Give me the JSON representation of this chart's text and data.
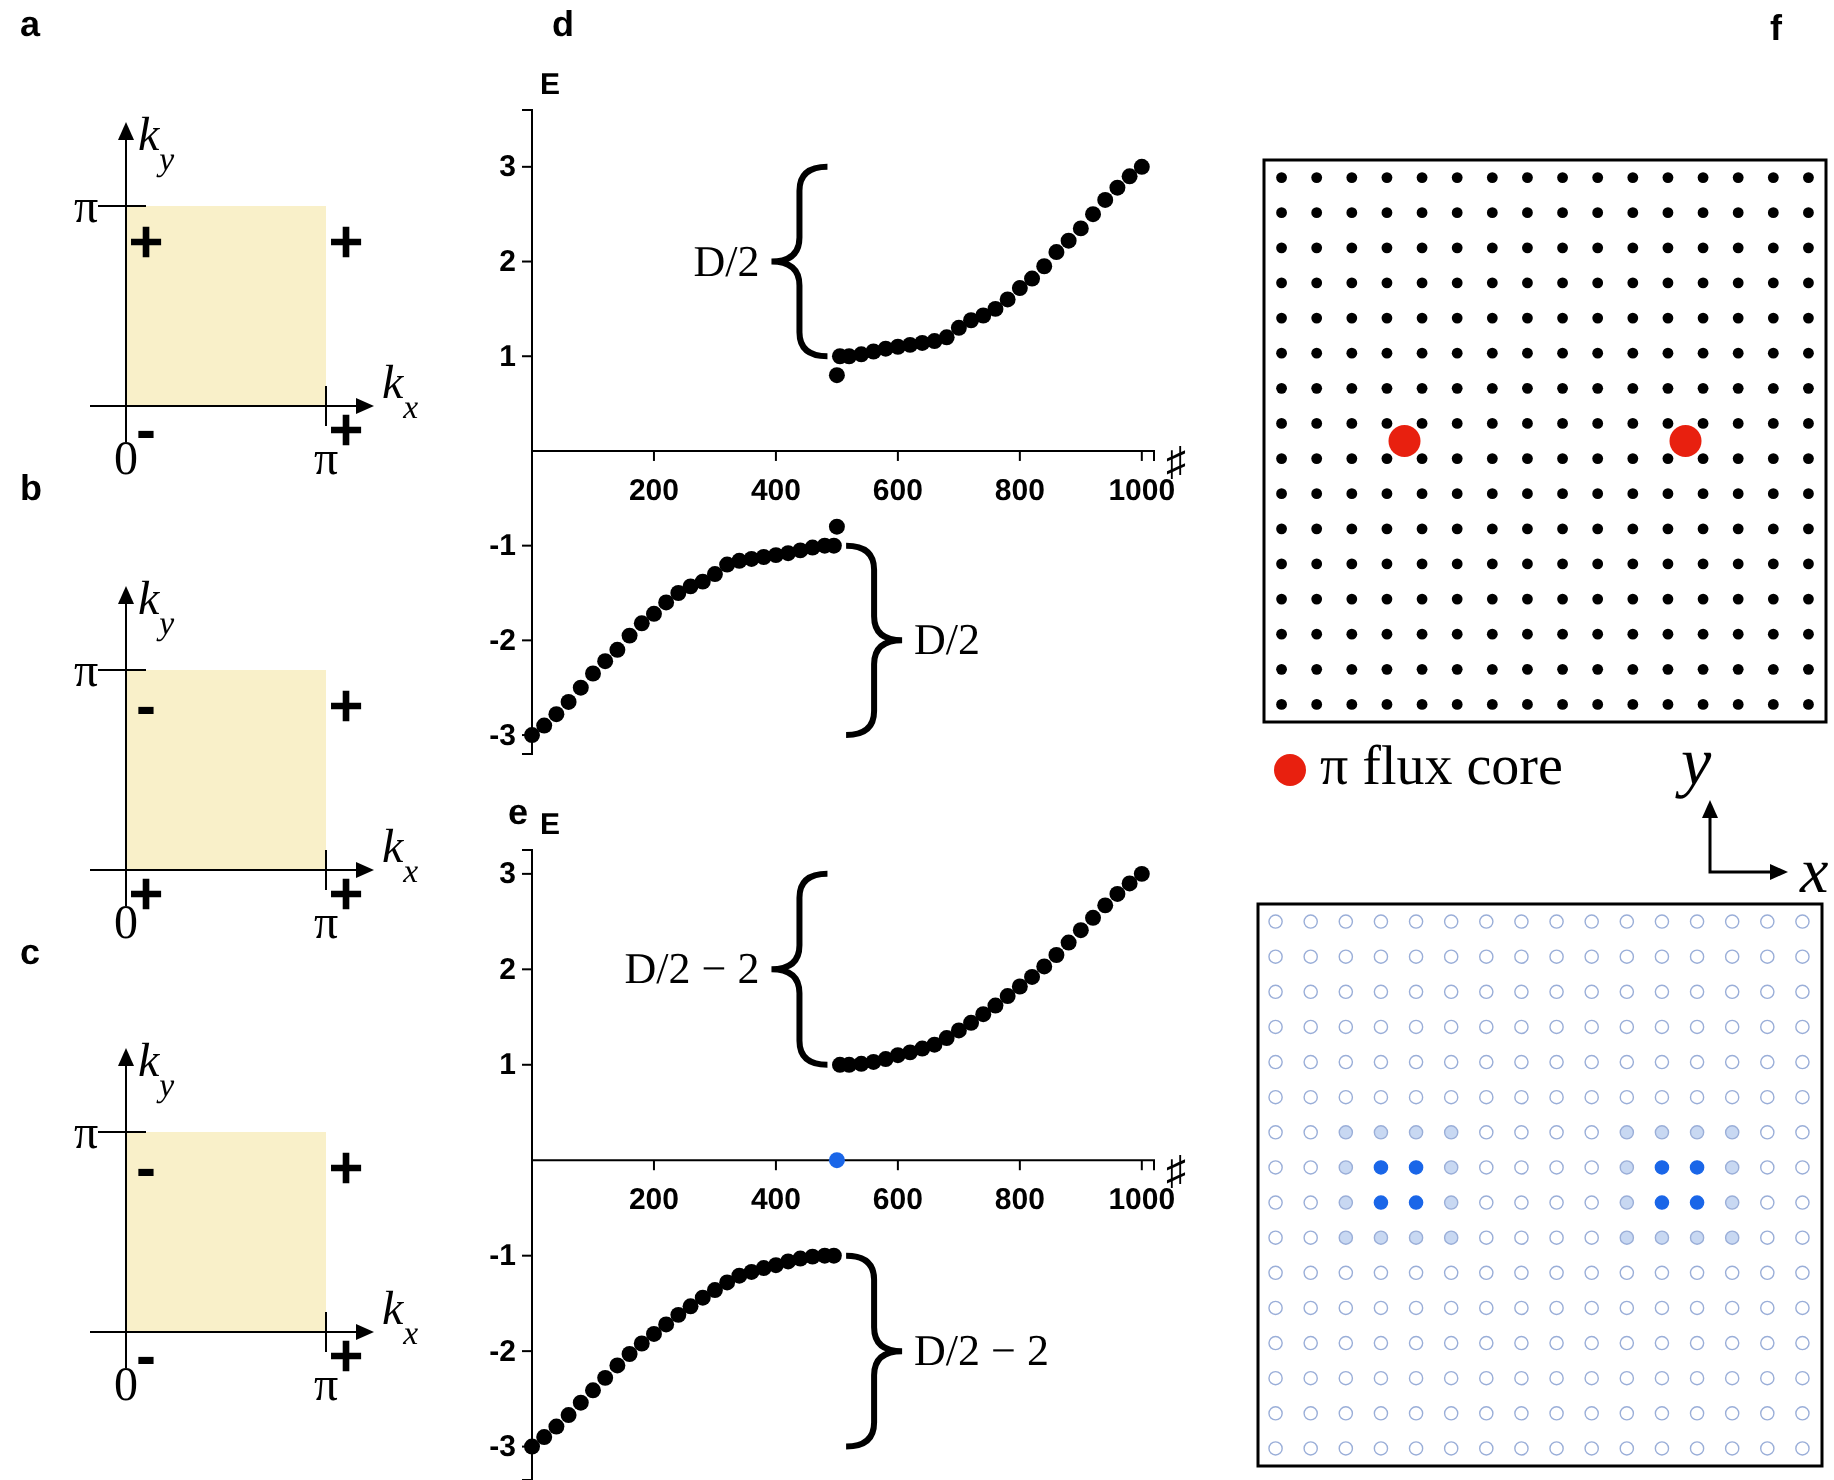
{
  "chart_data": [
    {
      "type": "other",
      "title": "a",
      "xlabel": "k$_{x}$",
      "ylabel": "k$_{y}$",
      "annotations": [
        "+",
        "+",
        "-",
        "+",
        "0",
        "π",
        "π"
      ]
    },
    {
      "type": "other",
      "title": "b",
      "xlabel": "k$_{x}$",
      "ylabel": "k$_{y}$",
      "annotations": [
        "-",
        "+",
        "+",
        "+",
        "0",
        "π",
        "π"
      ]
    },
    {
      "type": "other",
      "title": "c",
      "xlabel": "k$_{x}$",
      "ylabel": "k$_{y}$",
      "annotations": [
        "-",
        "+",
        "-",
        "+",
        "0",
        "π",
        "π"
      ]
    },
    {
      "type": "scatter",
      "title": "d",
      "xlabel": "♯",
      "ylabel": "E",
      "xlim": [
        0,
        1020
      ],
      "ylim": [
        -3.2,
        3.6
      ],
      "xticks": [
        200,
        400,
        600,
        800,
        1000
      ],
      "yticks": [
        -3,
        -2,
        -1,
        1,
        2,
        3
      ],
      "marker": "circle",
      "annotations": [
        "D/2",
        "D/2"
      ],
      "series": [
        {
          "color": "#000000",
          "x": [
            0,
            20,
            40,
            60,
            80,
            100,
            120,
            140,
            160,
            180,
            200,
            220,
            240,
            260,
            280,
            300,
            320,
            340,
            360,
            380,
            400,
            420,
            440,
            460,
            480,
            495,
            500,
            500,
            505,
            520,
            540,
            560,
            580,
            600,
            620,
            640,
            660,
            680,
            700,
            720,
            740,
            760,
            780,
            800,
            820,
            840,
            860,
            880,
            900,
            920,
            940,
            960,
            980,
            1000
          ],
          "values": [
            -3.0,
            -2.9,
            -2.78,
            -2.65,
            -2.5,
            -2.35,
            -2.22,
            -2.1,
            -1.95,
            -1.82,
            -1.72,
            -1.6,
            -1.5,
            -1.43,
            -1.38,
            -1.3,
            -1.2,
            -1.16,
            -1.14,
            -1.12,
            -1.1,
            -1.08,
            -1.05,
            -1.02,
            -1.0,
            -1.0,
            -0.8,
            0.8,
            1.0,
            1.0,
            1.02,
            1.05,
            1.08,
            1.1,
            1.12,
            1.14,
            1.16,
            1.2,
            1.3,
            1.38,
            1.43,
            1.5,
            1.6,
            1.72,
            1.82,
            1.95,
            2.1,
            2.22,
            2.35,
            2.5,
            2.65,
            2.78,
            2.9,
            3.0
          ]
        }
      ]
    },
    {
      "type": "scatter",
      "title": "e",
      "xlabel": "♯",
      "ylabel": "E",
      "xlim": [
        0,
        1020
      ],
      "ylim": [
        -3.35,
        3.25
      ],
      "xticks": [
        200,
        400,
        600,
        800,
        1000
      ],
      "yticks": [
        -3,
        -2,
        -1,
        1,
        2,
        3
      ],
      "marker": "circle",
      "annotations": [
        "D/2 − 2",
        "D/2 − 2"
      ],
      "series": [
        {
          "color": "#000000",
          "x": [
            0,
            20,
            40,
            60,
            80,
            100,
            120,
            140,
            160,
            180,
            200,
            220,
            240,
            260,
            280,
            300,
            320,
            340,
            360,
            380,
            400,
            420,
            440,
            460,
            480,
            495,
            505,
            520,
            540,
            560,
            580,
            600,
            620,
            640,
            660,
            680,
            700,
            720,
            740,
            760,
            780,
            800,
            820,
            840,
            860,
            880,
            900,
            920,
            940,
            960,
            980,
            1000
          ],
          "values": [
            -3.0,
            -2.9,
            -2.79,
            -2.67,
            -2.54,
            -2.41,
            -2.28,
            -2.15,
            -2.03,
            -1.92,
            -1.82,
            -1.72,
            -1.62,
            -1.53,
            -1.44,
            -1.36,
            -1.28,
            -1.21,
            -1.17,
            -1.13,
            -1.1,
            -1.06,
            -1.03,
            -1.01,
            -1.0,
            -1.0,
            1.0,
            1.0,
            1.01,
            1.03,
            1.06,
            1.1,
            1.13,
            1.17,
            1.21,
            1.28,
            1.36,
            1.44,
            1.53,
            1.62,
            1.72,
            1.82,
            1.92,
            2.03,
            2.15,
            2.28,
            2.41,
            2.54,
            2.67,
            2.79,
            2.9,
            3.0
          ]
        },
        {
          "color": "#1a66e8",
          "x": [
            500
          ],
          "values": [
            0
          ]
        }
      ]
    },
    {
      "type": "other",
      "title": "f",
      "annotations": [
        "π flux core",
        "y",
        "x"
      ]
    }
  ]
}
